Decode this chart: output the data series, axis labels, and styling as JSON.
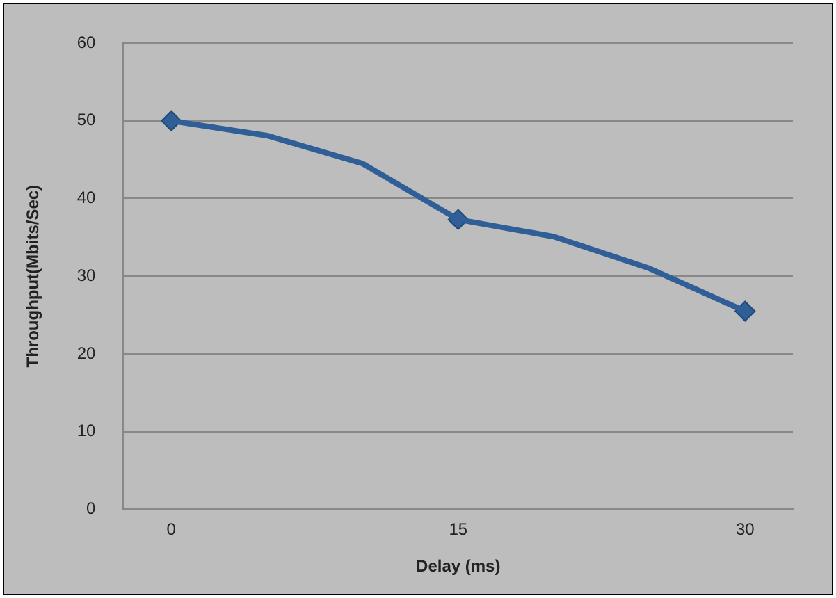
{
  "chart_data": {
    "type": "line",
    "xlabel": "Delay (ms)",
    "ylabel": "Throughput(Mbits/Sec)",
    "categories": [
      "0",
      null,
      null,
      "15",
      null,
      null,
      "30"
    ],
    "series": [
      {
        "color": "#2f5f96",
        "marker": "none",
        "values": [
          50.0,
          48.1,
          44.5,
          37.3,
          35.1,
          31.0,
          25.5
        ]
      },
      {
        "type": "scatter",
        "color": "#2f5f96",
        "marker": "diamond",
        "x": [
          "0",
          "15",
          "30"
        ],
        "values": [
          50.0,
          37.3,
          25.5
        ]
      }
    ],
    "ylim": [
      0,
      60
    ],
    "yticks": [
      0,
      10,
      20,
      30,
      40,
      50,
      60
    ],
    "grid": "y",
    "legend": false,
    "line_style": "solid"
  }
}
